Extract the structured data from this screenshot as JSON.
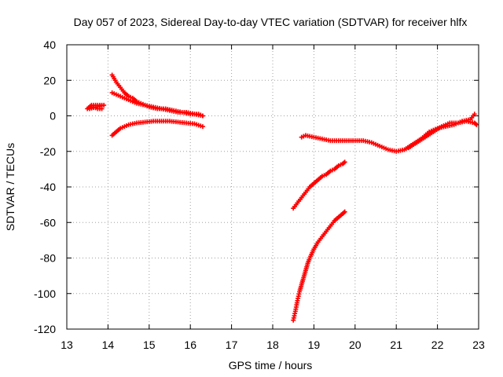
{
  "chart_data": {
    "type": "scatter",
    "title": "Day 057 of 2023, Sidereal Day-to-day VTEC variation (SDTVAR) for receiver hlfx",
    "xlabel": "GPS time / hours",
    "ylabel": "SDTVAR / TECUs",
    "xlim": [
      13,
      23
    ],
    "ylim": [
      -120,
      40
    ],
    "xticks": [
      "13",
      "14",
      "15",
      "16",
      "17",
      "18",
      "19",
      "20",
      "21",
      "22",
      "23"
    ],
    "yticks": [
      "40",
      "20",
      "0",
      "-20",
      "-40",
      "-60",
      "-80",
      "-100",
      "-120"
    ],
    "grid": true,
    "marker": "plus",
    "color": "#ff0000",
    "series": [
      {
        "points": [
          [
            13.5,
            4
          ],
          [
            13.6,
            6
          ],
          [
            13.7,
            6
          ],
          [
            13.8,
            6
          ],
          [
            13.9,
            6
          ],
          [
            13.55,
            4
          ],
          [
            13.65,
            5
          ],
          [
            13.75,
            4
          ],
          [
            13.85,
            4
          ]
        ]
      },
      {
        "points": [
          [
            14.1,
            23
          ],
          [
            14.2,
            19
          ],
          [
            14.3,
            16
          ],
          [
            14.4,
            13
          ],
          [
            14.5,
            11
          ],
          [
            14.6,
            10
          ],
          [
            14.7,
            8
          ],
          [
            14.8,
            7
          ],
          [
            14.9,
            6
          ],
          [
            15.0,
            5
          ],
          [
            15.2,
            4
          ],
          [
            15.4,
            4
          ],
          [
            15.6,
            3
          ],
          [
            15.8,
            2
          ],
          [
            16.0,
            1
          ],
          [
            16.2,
            1
          ],
          [
            16.3,
            0
          ]
        ]
      },
      {
        "points": [
          [
            14.1,
            13
          ],
          [
            14.3,
            11
          ],
          [
            14.5,
            9
          ],
          [
            14.7,
            7
          ],
          [
            14.9,
            6
          ],
          [
            15.1,
            5
          ],
          [
            15.3,
            4
          ],
          [
            15.5,
            3
          ],
          [
            15.7,
            2
          ],
          [
            15.9,
            2
          ],
          [
            16.1,
            1
          ],
          [
            16.3,
            0
          ]
        ]
      },
      {
        "points": [
          [
            14.1,
            -11
          ],
          [
            14.2,
            -9
          ],
          [
            14.3,
            -7
          ],
          [
            14.4,
            -6
          ],
          [
            14.5,
            -5
          ],
          [
            14.7,
            -4
          ],
          [
            14.9,
            -3.5
          ],
          [
            15.1,
            -3
          ],
          [
            15.3,
            -3
          ],
          [
            15.5,
            -3
          ],
          [
            15.7,
            -3.5
          ],
          [
            15.9,
            -4
          ],
          [
            16.1,
            -4.5
          ],
          [
            16.3,
            -6
          ]
        ]
      },
      {
        "points": [
          [
            18.7,
            -12
          ],
          [
            18.8,
            -11
          ],
          [
            19.0,
            -12
          ],
          [
            19.2,
            -13
          ],
          [
            19.4,
            -14
          ],
          [
            19.6,
            -14
          ],
          [
            19.8,
            -14
          ],
          [
            20.0,
            -14
          ],
          [
            20.2,
            -14
          ],
          [
            20.4,
            -15
          ],
          [
            20.6,
            -17
          ],
          [
            20.8,
            -19
          ],
          [
            21.0,
            -20
          ],
          [
            21.2,
            -19
          ],
          [
            21.4,
            -16
          ],
          [
            21.6,
            -13
          ],
          [
            21.8,
            -9
          ],
          [
            22.0,
            -7
          ],
          [
            22.2,
            -6
          ],
          [
            22.4,
            -5
          ],
          [
            22.6,
            -3
          ],
          [
            22.8,
            -2
          ],
          [
            22.9,
            1
          ]
        ]
      },
      {
        "points": [
          [
            21.3,
            -18
          ],
          [
            21.5,
            -15
          ],
          [
            21.7,
            -12
          ],
          [
            21.9,
            -9
          ],
          [
            22.1,
            -6
          ],
          [
            22.3,
            -4
          ],
          [
            22.5,
            -4
          ],
          [
            22.7,
            -3
          ],
          [
            22.9,
            -4
          ],
          [
            22.95,
            -5
          ]
        ]
      },
      {
        "points": [
          [
            18.5,
            -52
          ],
          [
            18.6,
            -49
          ],
          [
            18.7,
            -46
          ],
          [
            18.8,
            -43
          ],
          [
            18.9,
            -40
          ],
          [
            19.0,
            -38
          ],
          [
            19.1,
            -36
          ],
          [
            19.2,
            -34
          ],
          [
            19.3,
            -33
          ],
          [
            19.4,
            -31
          ],
          [
            19.5,
            -30
          ],
          [
            19.6,
            -28
          ],
          [
            19.7,
            -27
          ],
          [
            19.75,
            -26
          ]
        ]
      },
      {
        "points": [
          [
            18.5,
            -115
          ],
          [
            18.55,
            -110
          ],
          [
            18.6,
            -104
          ],
          [
            18.65,
            -99
          ],
          [
            18.7,
            -95
          ],
          [
            18.75,
            -91
          ],
          [
            18.8,
            -87
          ],
          [
            18.85,
            -83
          ],
          [
            18.9,
            -80
          ],
          [
            19.0,
            -75
          ],
          [
            19.1,
            -71
          ],
          [
            19.2,
            -68
          ],
          [
            19.3,
            -65
          ],
          [
            19.4,
            -62
          ],
          [
            19.5,
            -59
          ],
          [
            19.6,
            -57
          ],
          [
            19.7,
            -55
          ],
          [
            19.75,
            -54
          ]
        ]
      }
    ]
  }
}
